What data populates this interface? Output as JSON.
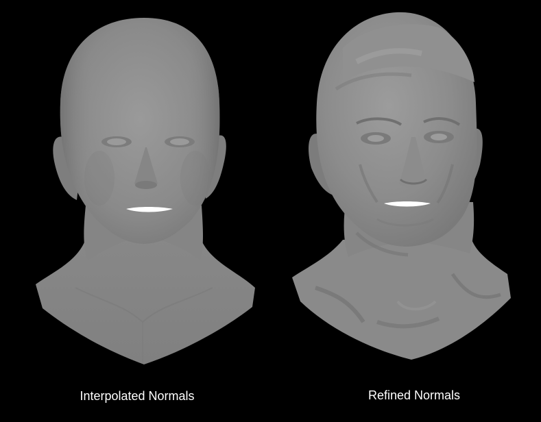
{
  "figure": {
    "background_color": "#000000",
    "caption_color": "#ffffff",
    "panels": [
      {
        "id": "interpolated",
        "caption": "Interpolated Normals",
        "render_color": "#8c8c8c"
      },
      {
        "id": "refined",
        "caption": "Refined Normals",
        "render_color": "#8a8a8a"
      }
    ]
  }
}
